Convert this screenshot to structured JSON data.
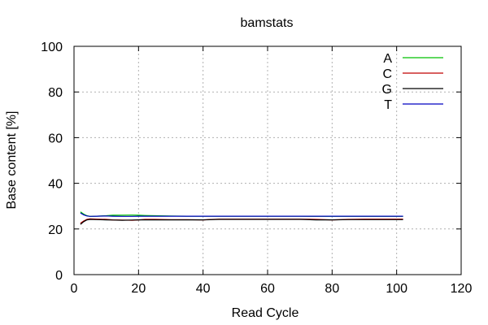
{
  "chart_data": {
    "type": "line",
    "title": "bamstats",
    "xlabel": "Read Cycle",
    "ylabel": "Base content [%]",
    "xlim": [
      0,
      120
    ],
    "ylim": [
      0,
      100
    ],
    "xticks": [
      0,
      20,
      40,
      60,
      80,
      100,
      120
    ],
    "yticks": [
      0,
      20,
      40,
      60,
      80,
      100
    ],
    "grid": true,
    "legend_position": "top-right",
    "series": [
      {
        "name": "A",
        "color": "#00c000",
        "x": [
          2,
          3,
          4,
          5,
          7,
          10,
          12,
          15,
          18,
          20,
          22,
          25,
          30,
          35,
          40,
          45,
          50,
          55,
          60,
          65,
          70,
          75,
          80,
          85,
          90,
          95,
          100,
          102
        ],
        "y": [
          27.5,
          26.5,
          25.8,
          25.5,
          25.6,
          25.8,
          26.0,
          26.0,
          26.1,
          26.0,
          25.9,
          25.8,
          25.7,
          25.6,
          25.6,
          25.6,
          25.6,
          25.6,
          25.6,
          25.6,
          25.6,
          25.5,
          25.5,
          25.5,
          25.5,
          25.5,
          25.5,
          25.5
        ]
      },
      {
        "name": "C",
        "color": "#c00000",
        "x": [
          2,
          3,
          4,
          5,
          7,
          10,
          12,
          15,
          18,
          20,
          22,
          25,
          30,
          35,
          40,
          45,
          50,
          55,
          60,
          65,
          70,
          75,
          80,
          85,
          90,
          95,
          100,
          102
        ],
        "y": [
          22.5,
          23.5,
          24.2,
          24.4,
          24.3,
          24.2,
          24.0,
          23.9,
          23.8,
          24.0,
          24.2,
          24.2,
          24.1,
          24.1,
          24.0,
          24.3,
          24.3,
          24.3,
          24.3,
          24.3,
          24.3,
          24.2,
          24.0,
          24.2,
          24.3,
          24.3,
          24.3,
          24.3
        ]
      },
      {
        "name": "G",
        "color": "#000000",
        "x": [
          2,
          3,
          4,
          5,
          7,
          10,
          12,
          15,
          18,
          20,
          22,
          25,
          30,
          35,
          40,
          45,
          50,
          55,
          60,
          65,
          70,
          75,
          80,
          85,
          90,
          95,
          100,
          102
        ],
        "y": [
          22.0,
          23.2,
          24.0,
          24.2,
          24.1,
          24.0,
          23.9,
          23.8,
          23.9,
          24.0,
          24.0,
          24.0,
          24.0,
          24.0,
          24.0,
          24.2,
          24.2,
          24.2,
          24.2,
          24.2,
          24.2,
          24.0,
          24.0,
          24.1,
          24.1,
          24.1,
          24.1,
          24.1
        ]
      },
      {
        "name": "T",
        "color": "#0000c0",
        "x": [
          2,
          3,
          4,
          5,
          7,
          10,
          12,
          15,
          18,
          20,
          22,
          25,
          30,
          35,
          40,
          45,
          50,
          55,
          60,
          65,
          70,
          75,
          80,
          85,
          90,
          95,
          100,
          102
        ],
        "y": [
          27.0,
          26.2,
          25.7,
          25.5,
          25.6,
          25.7,
          25.6,
          25.5,
          25.5,
          25.6,
          25.6,
          25.6,
          25.6,
          25.6,
          25.6,
          25.6,
          25.6,
          25.6,
          25.6,
          25.6,
          25.6,
          25.6,
          25.6,
          25.6,
          25.6,
          25.6,
          25.6,
          25.6
        ]
      }
    ]
  }
}
